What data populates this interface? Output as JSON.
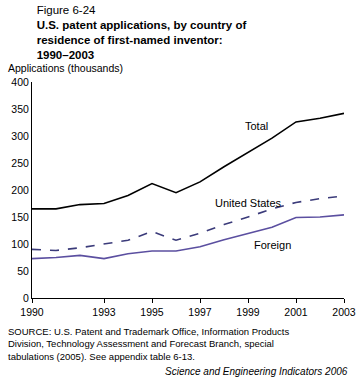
{
  "chart_data": {
    "type": "line",
    "subtitle": "Figure 6-24",
    "title": "U.S. patent applications, by country of residence of first-named inventor: 1990–2003",
    "y_label": "Applications (thousands)",
    "x": [
      1990,
      1991,
      1992,
      1993,
      1994,
      1995,
      1996,
      1997,
      1998,
      1999,
      2000,
      2001,
      2002,
      2003
    ],
    "series": [
      {
        "name": "Total",
        "color": "#000000",
        "line_style": "solid",
        "values": [
          165,
          165,
          173,
          175,
          190,
          212,
          195,
          215,
          243,
          270,
          296,
          326,
          333,
          342
        ]
      },
      {
        "name": "United States",
        "color": "#3b3b7a",
        "line_style": "dashed",
        "values": [
          90,
          88,
          93,
          100,
          107,
          123,
          107,
          120,
          136,
          150,
          165,
          177,
          184,
          189
        ]
      },
      {
        "name": "Foreign",
        "color": "#5b4fa0",
        "line_style": "solid",
        "values": [
          73,
          75,
          79,
          73,
          82,
          87,
          87,
          95,
          108,
          120,
          131,
          149,
          150,
          154
        ]
      }
    ],
    "xlim": [
      1990,
      2003
    ],
    "xticks": [
      1990,
      1993,
      1995,
      1997,
      1999,
      2001,
      2003
    ],
    "ylim": [
      0,
      400
    ],
    "yticks": [
      0,
      50,
      100,
      150,
      200,
      250,
      300,
      350,
      400
    ],
    "grid": false,
    "annotations": [
      "SOURCE: U.S. Patent and Trademark Office, Information Products Division, Technology Assessment and Forecast Branch, special tabulations (2005). See appendix table 6-13.",
      "Science and Engineering Indicators 2006"
    ]
  }
}
